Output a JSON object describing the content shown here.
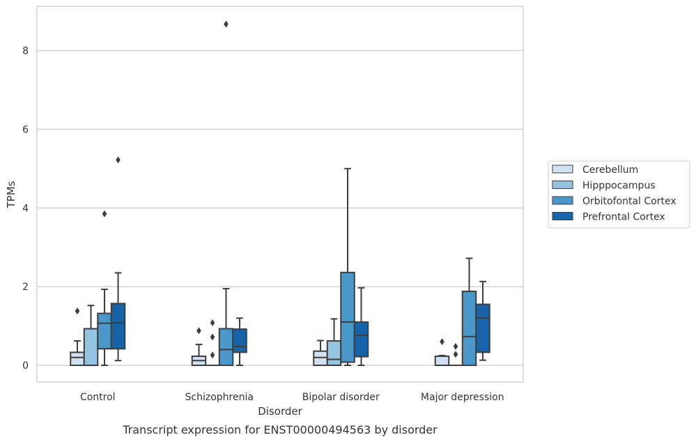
{
  "chart_data": {
    "type": "box",
    "xlabel": "Disorder",
    "ylabel": "TPMs",
    "caption": "Transcript expression for ENST00000494563 by disorder",
    "ylim": [
      -0.42,
      9.1
    ],
    "yticks": [
      0,
      2,
      4,
      6,
      8
    ],
    "grid": "horizontal",
    "legend_position": "right",
    "categories": [
      "Control",
      "Schizophrenia",
      "Bipolar disorder",
      "Major depression"
    ],
    "series": [
      {
        "name": "Cerebellum",
        "color": "#d0e1f2"
      },
      {
        "name": "Hipppocampus",
        "color": "#94c4df"
      },
      {
        "name": "Orbitofontal Cortex",
        "color": "#4a98c9"
      },
      {
        "name": "Prefrontal Cortex",
        "color": "#1764ab"
      }
    ],
    "boxes": [
      [
        {
          "min": 0,
          "q1": 0,
          "median": 0.2,
          "q3": 0.33,
          "max": 0.62,
          "outliers": [
            1.38
          ]
        },
        {
          "min": 0,
          "q1": 0,
          "median": 0,
          "q3": 0.93,
          "max": 1.52,
          "outliers": []
        },
        {
          "min": 0,
          "q1": 0.42,
          "median": 1.07,
          "q3": 1.32,
          "max": 1.93,
          "outliers": [
            3.85
          ]
        },
        {
          "min": 0.12,
          "q1": 0.42,
          "median": 1.08,
          "q3": 1.57,
          "max": 2.35,
          "outliers": [
            5.22
          ]
        }
      ],
      [
        {
          "min": 0,
          "q1": 0,
          "median": 0.12,
          "q3": 0.23,
          "max": 0.53,
          "outliers": [
            0.88
          ]
        },
        {
          "min": 0,
          "q1": 0,
          "median": 0,
          "q3": 0,
          "max": 0,
          "outliers": [
            1.08,
            0.72,
            0.26
          ]
        },
        {
          "min": 0,
          "q1": 0,
          "median": 0.4,
          "q3": 0.93,
          "max": 1.95,
          "outliers": [
            8.67
          ]
        },
        {
          "min": 0,
          "q1": 0.33,
          "median": 0.48,
          "q3": 0.92,
          "max": 1.2,
          "outliers": []
        }
      ],
      [
        {
          "min": 0,
          "q1": 0,
          "median": 0.2,
          "q3": 0.36,
          "max": 0.63,
          "outliers": []
        },
        {
          "min": 0,
          "q1": 0,
          "median": 0.15,
          "q3": 0.62,
          "max": 1.18,
          "outliers": []
        },
        {
          "min": 0,
          "q1": 0.08,
          "median": 1.1,
          "q3": 2.36,
          "max": 5.0,
          "outliers": []
        },
        {
          "min": 0,
          "q1": 0.22,
          "median": 0.76,
          "q3": 1.1,
          "max": 1.97,
          "outliers": []
        }
      ],
      [
        {
          "min": 0,
          "q1": 0,
          "median": 0,
          "q3": 0.23,
          "max": 0.25,
          "outliers": [
            0.6
          ]
        },
        {
          "min": 0,
          "q1": 0,
          "median": 0,
          "q3": 0,
          "max": 0,
          "outliers": [
            0.48,
            0.28
          ]
        },
        {
          "min": 0,
          "q1": 0,
          "median": 0.73,
          "q3": 1.88,
          "max": 2.72,
          "outliers": []
        },
        {
          "min": 0.13,
          "q1": 0.33,
          "median": 1.2,
          "q3": 1.55,
          "max": 2.13,
          "outliers": []
        }
      ]
    ]
  }
}
